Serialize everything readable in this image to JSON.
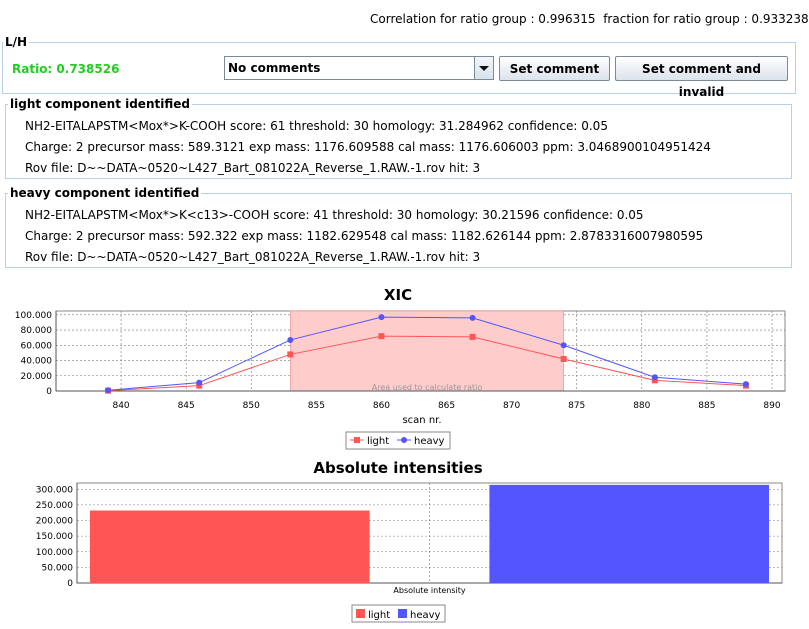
{
  "header": {
    "correlation_label": "Correlation for ratio group : 0.996315",
    "fraction_label": "fraction for ratio group : 0.933238"
  },
  "lh_panel": {
    "title": "L/H",
    "ratio": "Ratio: 0.738526",
    "comment_select": "No comments",
    "set_comment": "Set comment",
    "set_comment_invalid": "Set comment and invalid"
  },
  "light_panel": {
    "title": "light component identified",
    "line1": "NH2-EITALAPSTM<Mox*>K-COOH  score: 61  threshold: 30  homology: 31.284962  confidence: 0.05",
    "line2": "Charge: 2  precursor mass: 589.3121  exp mass: 1176.609588  cal mass: 1176.606003  ppm: 3.0468900104951424",
    "line3": "Rov file: D~~DATA~0520~L427_Bart_081022A_Reverse_1.RAW.-1.rov  hit: 3"
  },
  "heavy_panel": {
    "title": "heavy component identified",
    "line1": "NH2-EITALAPSTM<Mox*>K<c13>-COOH  score: 41  threshold: 30  homology: 30.21596  confidence: 0.05",
    "line2": "Charge: 2  precursor mass: 592.322  exp mass: 1182.629548  cal mass: 1182.626144  ppm: 2.8783316007980595",
    "line3": "Rov file: D~~DATA~0520~L427_Bart_081022A_Reverse_1.RAW.-1.rov  hit: 3"
  },
  "colors": {
    "light": "#ff5555",
    "heavy": "#5555ff",
    "ratio_text": "#22cc22",
    "area": "#ffcccc"
  },
  "chart_data": [
    {
      "type": "line",
      "title": "XIC",
      "xlabel": "scan nr.",
      "ylabel": "",
      "xlim": [
        835,
        891
      ],
      "ylim": [
        0,
        105000
      ],
      "x_ticks": [
        840,
        845,
        850,
        855,
        860,
        865,
        870,
        875,
        880,
        885,
        890
      ],
      "y_ticks": [
        0,
        20000,
        40000,
        60000,
        80000,
        100000
      ],
      "y_tick_labels": [
        "0",
        "20.000",
        "40.000",
        "60.000",
        "80.000",
        "100.000"
      ],
      "grid": true,
      "legend": "bottom",
      "x": [
        839,
        846,
        853,
        860,
        867,
        874,
        881,
        888
      ],
      "series": [
        {
          "name": "light",
          "values": [
            500,
            7000,
            48000,
            72000,
            71000,
            42000,
            14000,
            7000
          ]
        },
        {
          "name": "heavy",
          "values": [
            1000,
            11000,
            67000,
            97000,
            96000,
            60000,
            18000,
            9000
          ]
        }
      ],
      "highlight_region": {
        "x_start": 853,
        "x_end": 874,
        "label": "Area used to calculate ratio"
      }
    },
    {
      "type": "bar",
      "title": "Absolute intensities",
      "categories": [
        "Absolute intensity"
      ],
      "ylim": [
        0,
        320000
      ],
      "y_ticks": [
        0,
        50000,
        100000,
        150000,
        200000,
        250000,
        300000
      ],
      "y_tick_labels": [
        "0",
        "50.000",
        "100.000",
        "150.000",
        "200.000",
        "250.000",
        "300.000"
      ],
      "grid": true,
      "legend": "bottom",
      "series": [
        {
          "name": "light",
          "values": [
            232000
          ]
        },
        {
          "name": "heavy",
          "values": [
            314000
          ]
        }
      ]
    }
  ]
}
